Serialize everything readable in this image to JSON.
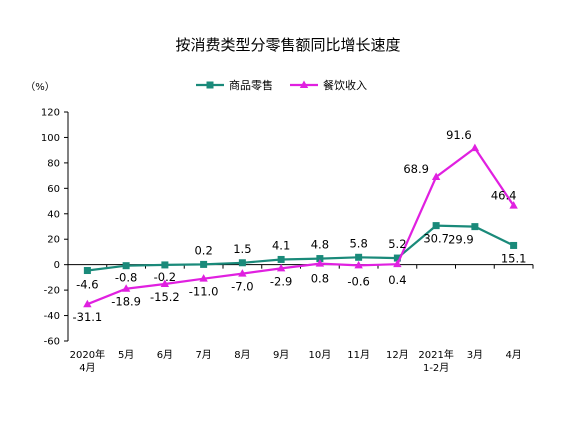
{
  "chart_data": {
    "type": "line",
    "title": "按消费类型分零售额同比增长速度",
    "ylabel": "（%）",
    "xlabel": "",
    "ylim": [
      -60,
      120
    ],
    "yticks": [
      -60,
      -40,
      -20,
      0,
      20,
      40,
      60,
      80,
      100,
      120
    ],
    "categories": [
      [
        "2020年",
        "4月"
      ],
      [
        "5月"
      ],
      [
        "6月"
      ],
      [
        "7月"
      ],
      [
        "8月"
      ],
      [
        "9月"
      ],
      [
        "10月"
      ],
      [
        "11月"
      ],
      [
        "12月"
      ],
      [
        "2021年",
        "1-2月"
      ],
      [
        "3月"
      ],
      [
        "4月"
      ]
    ],
    "legend_position": "top-right",
    "grid": false,
    "series": [
      {
        "name": "商品零售",
        "color": "#1a8a7a",
        "marker": "square",
        "values": [
          -4.6,
          -0.8,
          -0.2,
          0.2,
          1.5,
          4.1,
          4.8,
          5.8,
          5.2,
          30.7,
          29.9,
          15.1
        ],
        "labels": [
          "-4.6",
          "-0.8",
          "-0.2",
          "0.2",
          "1.5",
          "4.1",
          "4.8",
          "5.8",
          "5.2",
          "30.7",
          "29.9",
          "15.1"
        ]
      },
      {
        "name": "餐饮收入",
        "color": "#e020e0",
        "marker": "triangle",
        "values": [
          -31.1,
          -18.9,
          -15.2,
          -11.0,
          -7.0,
          -2.9,
          0.8,
          -0.6,
          0.4,
          68.9,
          91.6,
          46.4
        ],
        "labels": [
          "-31.1",
          "-18.9",
          "-15.2",
          "-11.0",
          "-7.0",
          "-2.9",
          "0.8",
          "-0.6",
          "0.4",
          "68.9",
          "91.6",
          "46.4"
        ]
      }
    ]
  }
}
